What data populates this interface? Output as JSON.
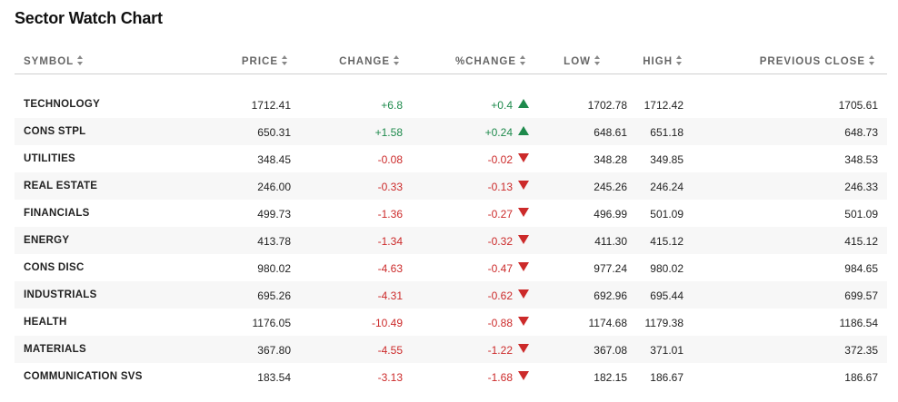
{
  "title": "Sector Watch Chart",
  "headers": {
    "symbol": "SYMBOL",
    "price": "PRICE",
    "change": "CHANGE",
    "pct_change": "%CHANGE",
    "low": "LOW",
    "high": "HIGH",
    "prev_close": "PREVIOUS CLOSE"
  },
  "colors": {
    "up": "#1e8a4c",
    "down": "#cc2a2a"
  },
  "rows": [
    {
      "symbol": "TECHNOLOGY",
      "price": "1712.41",
      "change": "+6.8",
      "pct": "+0.4",
      "dir": "up",
      "low": "1702.78",
      "high": "1712.42",
      "prev": "1705.61"
    },
    {
      "symbol": "CONS STPL",
      "price": "650.31",
      "change": "+1.58",
      "pct": "+0.24",
      "dir": "up",
      "low": "648.61",
      "high": "651.18",
      "prev": "648.73"
    },
    {
      "symbol": "UTILITIES",
      "price": "348.45",
      "change": "-0.08",
      "pct": "-0.02",
      "dir": "down",
      "low": "348.28",
      "high": "349.85",
      "prev": "348.53"
    },
    {
      "symbol": "REAL ESTATE",
      "price": "246.00",
      "change": "-0.33",
      "pct": "-0.13",
      "dir": "down",
      "low": "245.26",
      "high": "246.24",
      "prev": "246.33"
    },
    {
      "symbol": "FINANCIALS",
      "price": "499.73",
      "change": "-1.36",
      "pct": "-0.27",
      "dir": "down",
      "low": "496.99",
      "high": "501.09",
      "prev": "501.09"
    },
    {
      "symbol": "ENERGY",
      "price": "413.78",
      "change": "-1.34",
      "pct": "-0.32",
      "dir": "down",
      "low": "411.30",
      "high": "415.12",
      "prev": "415.12"
    },
    {
      "symbol": "CONS DISC",
      "price": "980.02",
      "change": "-4.63",
      "pct": "-0.47",
      "dir": "down",
      "low": "977.24",
      "high": "980.02",
      "prev": "984.65"
    },
    {
      "symbol": "INDUSTRIALS",
      "price": "695.26",
      "change": "-4.31",
      "pct": "-0.62",
      "dir": "down",
      "low": "692.96",
      "high": "695.44",
      "prev": "699.57"
    },
    {
      "symbol": "HEALTH",
      "price": "1176.05",
      "change": "-10.49",
      "pct": "-0.88",
      "dir": "down",
      "low": "1174.68",
      "high": "1179.38",
      "prev": "1186.54"
    },
    {
      "symbol": "MATERIALS",
      "price": "367.80",
      "change": "-4.55",
      "pct": "-1.22",
      "dir": "down",
      "low": "367.08",
      "high": "371.01",
      "prev": "372.35"
    },
    {
      "symbol": "COMMUNICATION SVS",
      "price": "183.54",
      "change": "-3.13",
      "pct": "-1.68",
      "dir": "down",
      "low": "182.15",
      "high": "186.67",
      "prev": "186.67"
    }
  ]
}
